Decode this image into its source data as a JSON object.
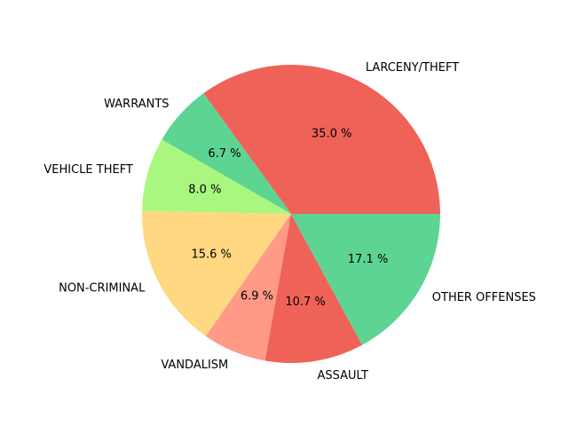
{
  "chart_data": {
    "type": "pie",
    "title": "",
    "start_angle_deg": 0,
    "direction": "counterclockwise",
    "slices": [
      {
        "label": "LARCENY/THEFT",
        "value": 35.0,
        "pct_label": "35.0 %",
        "color": "#ef6258"
      },
      {
        "label": "WARRANTS",
        "value": 6.7,
        "pct_label": "6.7 %",
        "color": "#5ed493"
      },
      {
        "label": "VEHICLE THEFT",
        "value": 8.0,
        "pct_label": "8.0 %",
        "color": "#aaf77f"
      },
      {
        "label": "NON-CRIMINAL",
        "value": 15.6,
        "pct_label": "15.6 %",
        "color": "#ffd881"
      },
      {
        "label": "VANDALISM",
        "value": 6.9,
        "pct_label": "6.9 %",
        "color": "#ff9a86"
      },
      {
        "label": "ASSAULT",
        "value": 10.7,
        "pct_label": "10.7 %",
        "color": "#ef6258"
      },
      {
        "label": "OTHER OFFENSES",
        "value": 17.1,
        "pct_label": "17.1 %",
        "color": "#5ed493"
      }
    ]
  }
}
